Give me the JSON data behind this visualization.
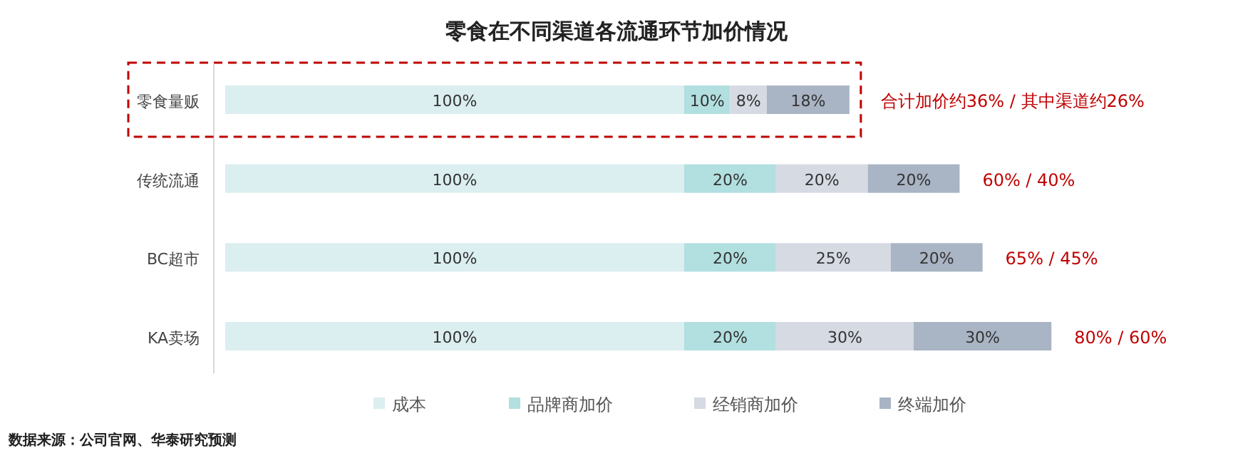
{
  "chart_data": {
    "type": "bar",
    "orientation": "horizontal",
    "stacked": true,
    "legend": "bottom",
    "title": "零食在不同渠道各流通环节加价情况",
    "categories": [
      "零食量贩",
      "传统流通",
      "BC超市",
      "KA卖场"
    ],
    "series": [
      {
        "name": "成本",
        "color": "#dbeef0",
        "values": [
          100,
          100,
          100,
          100
        ],
        "value_labels": [
          "100%",
          "100%",
          "100%",
          "100%"
        ]
      },
      {
        "name": "品牌商加价",
        "color": "#b2dfe0",
        "values": [
          10,
          20,
          20,
          20
        ],
        "value_labels": [
          "10%",
          "20%",
          "20%",
          "20%"
        ]
      },
      {
        "name": "经销商加价",
        "color": "#d5dae3",
        "values": [
          8,
          20,
          25,
          30
        ],
        "value_labels": [
          "8%",
          "20%",
          "25%",
          "30%"
        ]
      },
      {
        "name": "终端加价",
        "color": "#a9b4c4",
        "values": [
          18,
          20,
          20,
          30
        ],
        "value_labels": [
          "18%",
          "20%",
          "20%",
          "30%"
        ]
      }
    ],
    "annotations": [
      "合计加价约36% / 其中渠道约26%",
      "60% / 40%",
      "65% / 45%",
      "80% / 60%",
      "数据来源：公司官网、华泰研究预测"
    ]
  }
}
